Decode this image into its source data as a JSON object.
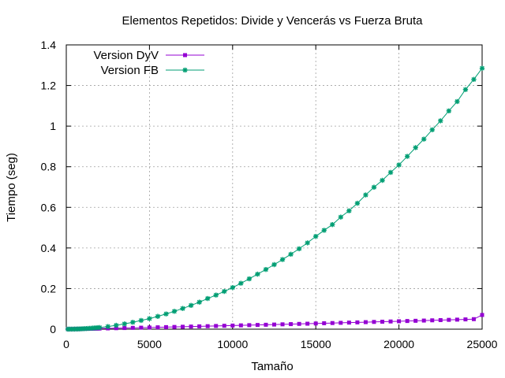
{
  "chart_data": {
    "type": "line",
    "title": "Elementos Repetidos: Divide y Vencerás vs Fuerza Bruta",
    "xlabel": "Tamaño",
    "ylabel": "Tiempo (seg)",
    "xlim": [
      0,
      25000
    ],
    "ylim": [
      0,
      1.4
    ],
    "xticks": [
      "0",
      "5000",
      "10000",
      "15000",
      "20000",
      "25000"
    ],
    "yticks": [
      "0",
      "0.2",
      "0.4",
      "0.6",
      "0.8",
      "1",
      "1.2",
      "1.4"
    ],
    "grid": true,
    "legend_position": "top-left",
    "x": [
      100,
      200,
      300,
      400,
      500,
      600,
      700,
      800,
      900,
      1000,
      1100,
      1200,
      1300,
      1400,
      1500,
      1600,
      1700,
      1800,
      1900,
      2000,
      2500,
      3000,
      3500,
      4000,
      4500,
      5000,
      5500,
      6000,
      6500,
      7000,
      7500,
      8000,
      8500,
      9000,
      9500,
      10000,
      10500,
      11000,
      11500,
      12000,
      12500,
      13000,
      13500,
      14000,
      14500,
      15000,
      15500,
      16000,
      16500,
      17000,
      17500,
      18000,
      18500,
      19000,
      19500,
      20000,
      20500,
      21000,
      21500,
      22000,
      22500,
      23000,
      23500,
      24000,
      24500,
      25000
    ],
    "series": [
      {
        "name": "Version DyV",
        "color": "#9400d3",
        "marker": "square",
        "values": [
          0.0002,
          0.0004,
          0.0005,
          0.0007,
          0.0009,
          0.001,
          0.0012,
          0.0013,
          0.0015,
          0.0016,
          0.0018,
          0.0019,
          0.0021,
          0.0022,
          0.0024,
          0.0025,
          0.0027,
          0.0028,
          0.003,
          0.0031,
          0.0039,
          0.0048,
          0.0056,
          0.0065,
          0.0074,
          0.0083,
          0.0092,
          0.0101,
          0.011,
          0.012,
          0.0129,
          0.0139,
          0.0148,
          0.0158,
          0.0168,
          0.0178,
          0.0188,
          0.0198,
          0.0208,
          0.0218,
          0.0228,
          0.0239,
          0.0249,
          0.026,
          0.027,
          0.0281,
          0.0292,
          0.0302,
          0.0313,
          0.0324,
          0.0335,
          0.0346,
          0.0357,
          0.0368,
          0.0379,
          0.039,
          0.0402,
          0.0413,
          0.0424,
          0.0436,
          0.0447,
          0.0459,
          0.047,
          0.0482,
          0.0494,
          0.07
        ]
      },
      {
        "name": "Version FB",
        "color": "#009e73",
        "marker": "star",
        "values": [
          0.0,
          0.0001,
          0.0001,
          0.0003,
          0.0005,
          0.0007,
          0.001,
          0.0013,
          0.0016,
          0.0021,
          0.0025,
          0.003,
          0.0035,
          0.004,
          0.0046,
          0.0053,
          0.006,
          0.0067,
          0.0074,
          0.008,
          0.013,
          0.019,
          0.026,
          0.034,
          0.043,
          0.052,
          0.063,
          0.075,
          0.088,
          0.102,
          0.117,
          0.133,
          0.151,
          0.168,
          0.186,
          0.205,
          0.226,
          0.248,
          0.271,
          0.294,
          0.318,
          0.343,
          0.369,
          0.396,
          0.425,
          0.457,
          0.487,
          0.515,
          0.552,
          0.583,
          0.62,
          0.661,
          0.699,
          0.733,
          0.772,
          0.809,
          0.851,
          0.894,
          0.936,
          0.982,
          1.026,
          1.075,
          1.121,
          1.18,
          1.23,
          1.285
        ]
      }
    ]
  }
}
